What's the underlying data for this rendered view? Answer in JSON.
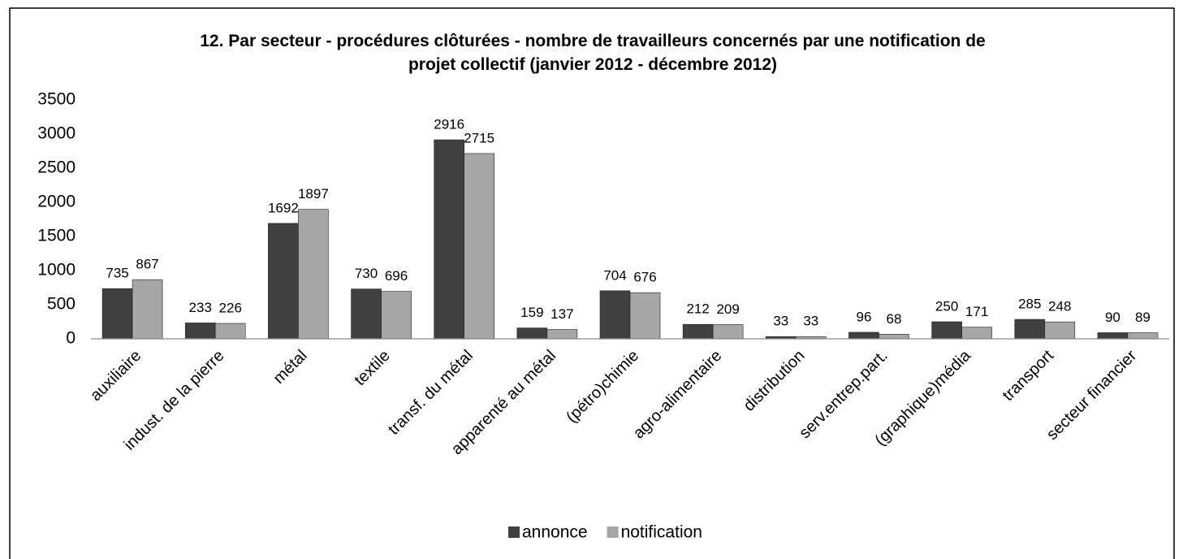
{
  "chart_data": {
    "type": "bar",
    "title": "12. Par secteur -  procédures clôturées - nombre de travailleurs concernés par une notification de projet collectif (janvier 2012 - décembre 2012)",
    "categories": [
      "auxiliaire",
      "indust. de la pierre",
      "métal",
      "textile",
      "transf. du métal",
      "apparenté au métal",
      "(pétro)chimie",
      "agro-alimentaire",
      "distribution",
      "serv.entrep.part.",
      "(graphique)média",
      "transport",
      "secteur financier"
    ],
    "series": [
      {
        "name": "annonce",
        "color": "#404040",
        "values": [
          735,
          233,
          1692,
          730,
          2916,
          159,
          704,
          212,
          33,
          96,
          250,
          285,
          90
        ]
      },
      {
        "name": "notification",
        "color": "#a6a6a6",
        "values": [
          867,
          226,
          1897,
          696,
          2715,
          137,
          676,
          209,
          33,
          68,
          171,
          248,
          89
        ]
      }
    ],
    "ylim": [
      0,
      3500
    ],
    "yticks": [
      0,
      500,
      1000,
      1500,
      2000,
      2500,
      3000,
      3500
    ],
    "grid": false,
    "legend": "bottom"
  }
}
